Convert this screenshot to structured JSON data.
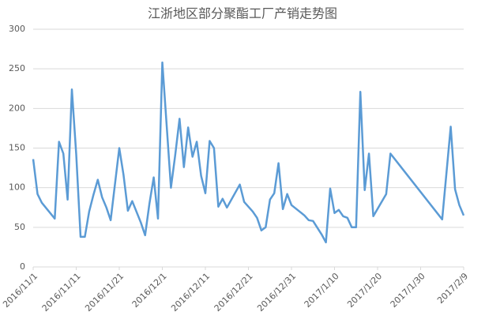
{
  "chart_data": {
    "type": "line",
    "title": "江浙地区部分聚酯工厂产销走势图",
    "x": [
      "2016/11/1",
      "2016/11/2",
      "2016/11/3",
      "2016/11/6",
      "2016/11/7",
      "2016/11/8",
      "2016/11/9",
      "2016/11/10",
      "2016/11/11",
      "2016/11/12",
      "2016/11/13",
      "2016/11/14",
      "2016/11/15",
      "2016/11/16",
      "2016/11/17",
      "2016/11/18",
      "2016/11/19",
      "2016/11/21",
      "2016/11/22",
      "2016/11/23",
      "2016/11/24",
      "2016/11/26",
      "2016/11/27",
      "2016/11/28",
      "2016/11/29",
      "2016/11/30",
      "2016/12/1",
      "2016/12/2",
      "2016/12/3",
      "2016/12/4",
      "2016/12/5",
      "2016/12/6",
      "2016/12/7",
      "2016/12/8",
      "2016/12/9",
      "2016/12/10",
      "2016/12/11",
      "2016/12/12",
      "2016/12/13",
      "2016/12/14",
      "2016/12/15",
      "2016/12/16",
      "2016/12/19",
      "2016/12/20",
      "2016/12/22",
      "2016/12/23",
      "2016/12/24",
      "2016/12/25",
      "2016/12/26",
      "2016/12/27",
      "2016/12/28",
      "2016/12/29",
      "2016/12/30",
      "2016/12/31",
      "2017/1/3",
      "2017/1/4",
      "2017/1/5",
      "2017/1/7",
      "2017/1/8",
      "2017/1/9",
      "2017/1/10",
      "2017/1/11",
      "2017/1/12",
      "2017/1/13",
      "2017/1/14",
      "2017/1/15",
      "2017/1/16",
      "2017/1/17",
      "2017/1/18",
      "2017/1/19",
      "2017/1/22",
      "2017/1/23",
      "2017/2/4",
      "2017/2/6",
      "2017/2/7",
      "2017/2/8",
      "2017/2/9"
    ],
    "series": [
      {
        "color": "#5b9bd5",
        "values": [
          136,
          92,
          81,
          61,
          158,
          143,
          85,
          224,
          142,
          38,
          38,
          70,
          91,
          110,
          88,
          75,
          59,
          150,
          116,
          71,
          83,
          56,
          40,
          80,
          113,
          61,
          258,
          180,
          100,
          141,
          187,
          126,
          176,
          139,
          158,
          115,
          93,
          159,
          150,
          76,
          86,
          75,
          104,
          82,
          70,
          62,
          46,
          50,
          85,
          93,
          131,
          73,
          92,
          78,
          65,
          59,
          58,
          41,
          31,
          99,
          68,
          72,
          64,
          62,
          50,
          50,
          221,
          97,
          143,
          64,
          92,
          143,
          60,
          177,
          98,
          78,
          65
        ]
      }
    ],
    "xlim": [
      "2016/11/1",
      "2017/2/9"
    ],
    "xticks": [
      "2016/11/1",
      "2016/11/11",
      "2016/11/21",
      "2016/12/1",
      "2016/12/11",
      "2016/12/21",
      "2016/12/31",
      "2017/1/10",
      "2017/1/20",
      "2017/1/30",
      "2017/2/9"
    ],
    "ylim": [
      0,
      300
    ],
    "yticks": [
      0,
      50,
      100,
      150,
      200,
      250,
      300
    ],
    "grid": true
  }
}
